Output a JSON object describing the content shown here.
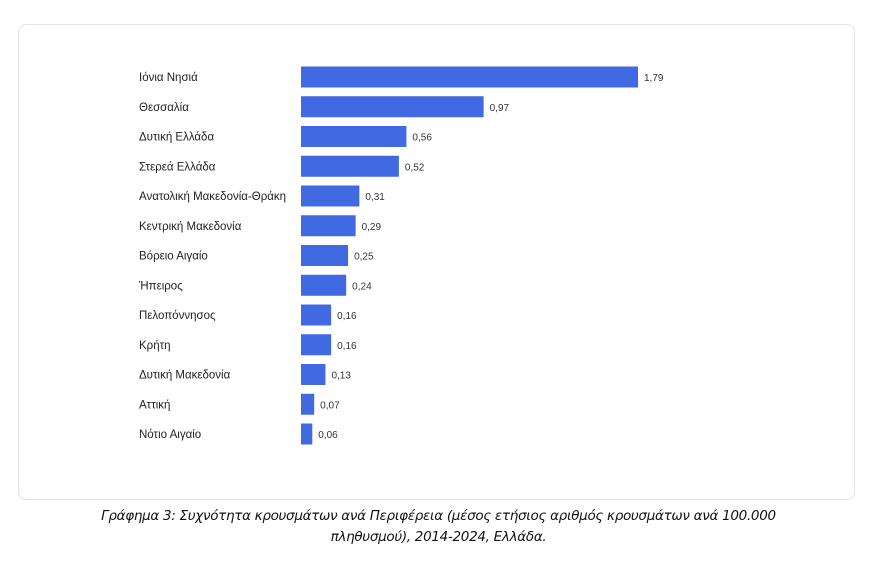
{
  "chart_data": {
    "type": "bar",
    "orientation": "horizontal",
    "categories": [
      "Ιόνια Νησιά",
      "Θεσσαλία",
      "Δυτική Ελλάδα",
      "Στερεά Ελλάδα",
      "Ανατολική Μακεδονία-Θράκη",
      "Κεντρική Μακεδονία",
      "Βόρειο Αιγαίο",
      "Ήπειρος",
      "Πελοπόννησος",
      "Κρήτη",
      "Δυτική Μακεδονία",
      "Αττική",
      "Νότιο Αιγαίο"
    ],
    "values": [
      1.79,
      0.97,
      0.56,
      0.52,
      0.31,
      0.29,
      0.25,
      0.24,
      0.16,
      0.16,
      0.13,
      0.07,
      0.06
    ],
    "value_labels": [
      "1,79",
      "0,97",
      "0,56",
      "0,52",
      "0,31",
      "0,29",
      "0,25",
      "0,24",
      "0,16",
      "0,16",
      "0,13",
      "0,07",
      "0,06"
    ],
    "bar_color": "#4169e1",
    "grid": false,
    "xlim": [
      0,
      1.79
    ]
  },
  "caption": {
    "line1": "Γράφημα 3:  Συχνότητα κρουσμάτων ανά Περιφέρεια (μέσος ετήσιος αριθμός κρουσμάτων ανά 100.000",
    "line2": "πληθυσμού), 2014-2024, Ελλάδα."
  }
}
